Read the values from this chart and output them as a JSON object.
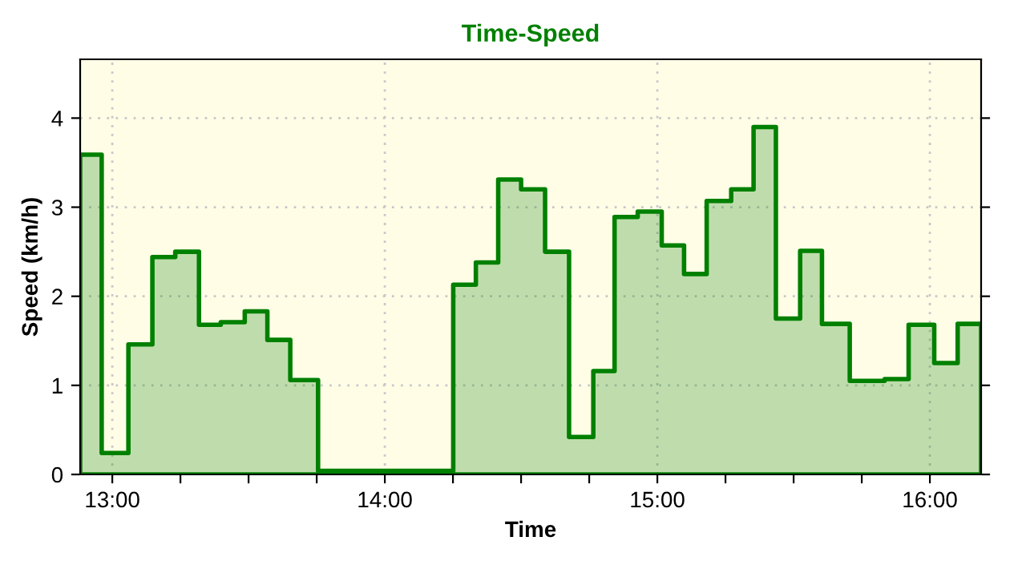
{
  "chart_data": {
    "type": "area",
    "title": "Time-Speed",
    "xlabel": "Time",
    "ylabel": "Speed (km/h)",
    "x": [
      12.882,
      12.961,
      13.059,
      13.147,
      13.231,
      13.318,
      13.398,
      13.486,
      13.569,
      13.653,
      13.755,
      14.251,
      14.334,
      14.416,
      14.5,
      14.588,
      14.676,
      14.765,
      14.843,
      14.928,
      15.016,
      15.098,
      15.181,
      15.271,
      15.353,
      15.435,
      15.524,
      15.604,
      15.706,
      15.834,
      15.922,
      16.016,
      16.102,
      16.188
    ],
    "series": [
      {
        "color": "#008000",
        "values": [
          3.59,
          0.24,
          1.46,
          2.44,
          2.5,
          1.68,
          1.71,
          1.83,
          1.51,
          1.06,
          0.04,
          2.13,
          2.38,
          3.31,
          3.2,
          2.5,
          0.42,
          1.16,
          2.89,
          2.95,
          2.57,
          2.25,
          3.07,
          3.2,
          3.9,
          1.75,
          2.51,
          1.69,
          1.05,
          1.07,
          1.68,
          1.25,
          1.69,
          1.69
        ]
      }
    ],
    "xlim": [
      12.882,
      16.188
    ],
    "ylim": [
      0,
      4.66
    ],
    "xticks": [
      {
        "value": 13,
        "label": "13:00"
      },
      {
        "value": 13.25,
        "label": null
      },
      {
        "value": 13.5,
        "label": null
      },
      {
        "value": 13.75,
        "label": null
      },
      {
        "value": 14,
        "label": "14:00"
      },
      {
        "value": 14.25,
        "label": null
      },
      {
        "value": 14.5,
        "label": null
      },
      {
        "value": 14.75,
        "label": null
      },
      {
        "value": 15,
        "label": "15:00"
      },
      {
        "value": 15.25,
        "label": null
      },
      {
        "value": 15.5,
        "label": null
      },
      {
        "value": 15.75,
        "label": null
      },
      {
        "value": 16,
        "label": "16:00"
      }
    ],
    "yticks": [
      0,
      1,
      2,
      3,
      4
    ],
    "grid": true,
    "line_style": "solid"
  }
}
